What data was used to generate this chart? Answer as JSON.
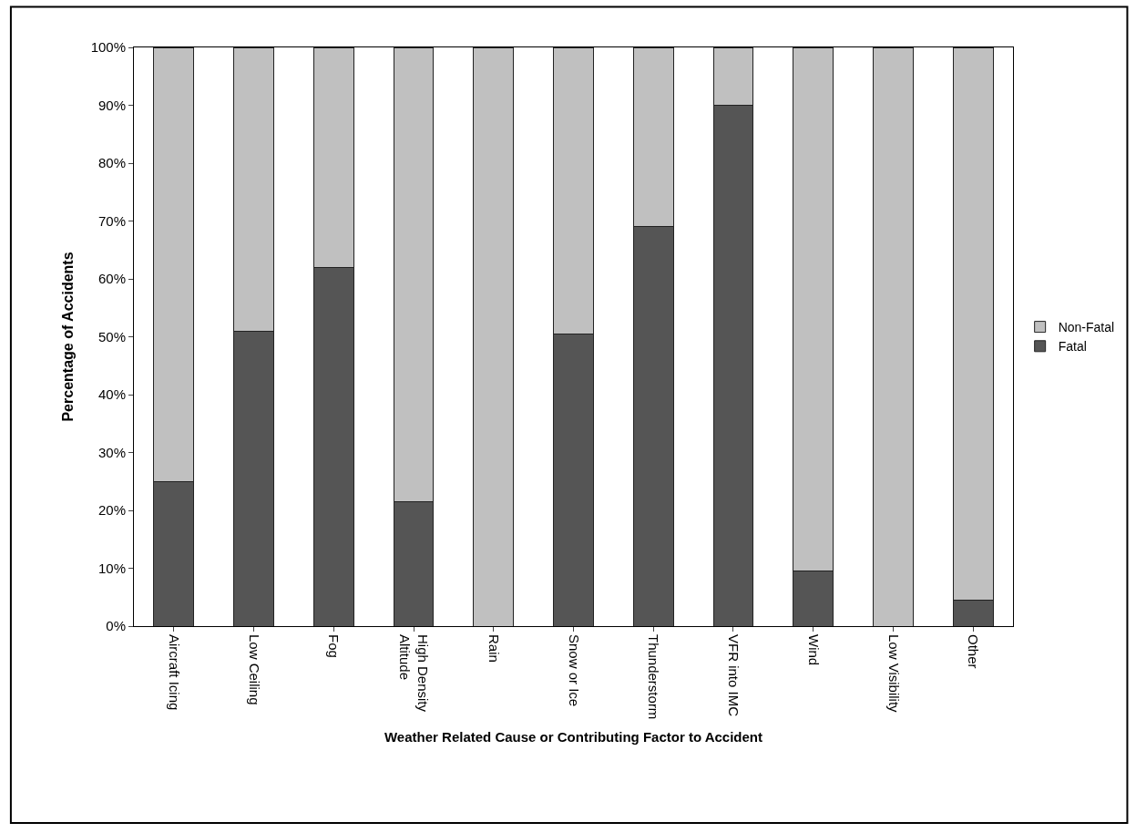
{
  "chart_data": {
    "type": "bar",
    "stacked": true,
    "xlabel": "Weather Related Cause or Contributing Factor to Accident",
    "ylabel": "Percentage of Accidents",
    "categories": [
      "Aircraft Icing",
      "Low Ceiling",
      "Fog",
      "High Density Altitude",
      "Rain",
      "Snow or Ice",
      "Thunderstorm",
      "VFR into IMC",
      "Wind",
      "Low Visibility",
      "Other"
    ],
    "series": [
      {
        "name": "Fatal",
        "color": "#555555",
        "values": [
          25,
          51,
          62,
          21.5,
          0,
          50.5,
          69,
          90,
          9.5,
          0,
          4.5
        ]
      },
      {
        "name": "Non-Fatal",
        "color": "#c0c0c0",
        "values": [
          75,
          49,
          38,
          78.5,
          100,
          49.5,
          31,
          10,
          90.5,
          100,
          95.5
        ]
      }
    ],
    "ylim": [
      0,
      100
    ],
    "yticks": [
      {
        "value": 0,
        "label": "0%"
      },
      {
        "value": 10,
        "label": "10%"
      },
      {
        "value": 20,
        "label": "20%"
      },
      {
        "value": 30,
        "label": "30%"
      },
      {
        "value": 40,
        "label": "40%"
      },
      {
        "value": 50,
        "label": "50%"
      },
      {
        "value": 60,
        "label": "60%"
      },
      {
        "value": 70,
        "label": "70%"
      },
      {
        "value": 80,
        "label": "80%"
      },
      {
        "value": 90,
        "label": "90%"
      },
      {
        "value": 100,
        "label": "100%"
      }
    ],
    "legend": "right"
  }
}
